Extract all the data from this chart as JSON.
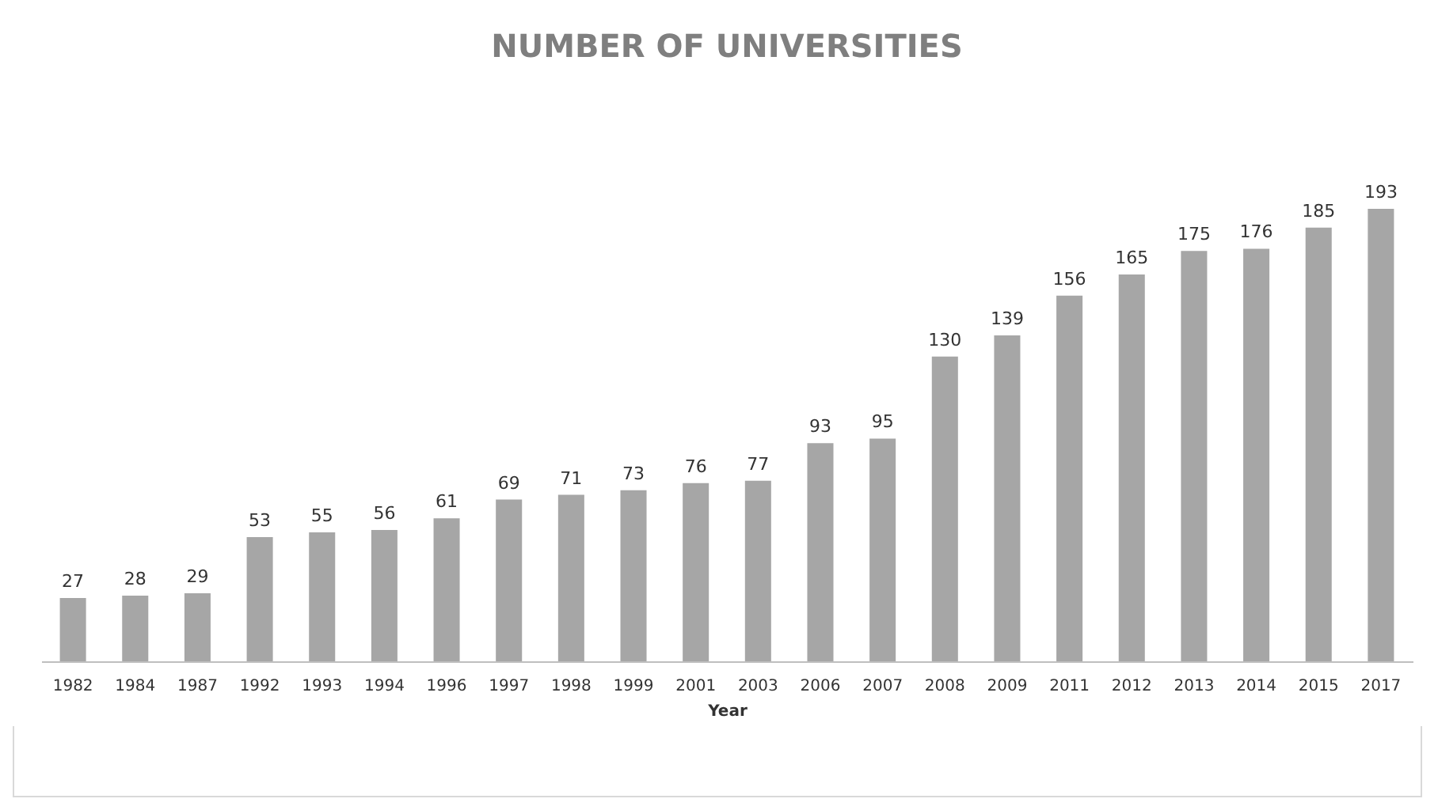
{
  "chart_data": {
    "type": "bar",
    "title": "NUMBER OF UNIVERSITIES",
    "xlabel": "Year",
    "categories": [
      "1982",
      "1984",
      "1987",
      "1992",
      "1993",
      "1994",
      "1996",
      "1997",
      "1998",
      "1999",
      "2001",
      "2003",
      "2006",
      "2007",
      "2008",
      "2009",
      "2011",
      "2012",
      "2013",
      "2014",
      "2015",
      "2017"
    ],
    "values": [
      27,
      28,
      29,
      53,
      55,
      56,
      61,
      69,
      71,
      73,
      76,
      77,
      93,
      95,
      130,
      139,
      156,
      165,
      175,
      176,
      185,
      193
    ],
    "color": "#a6a6a6",
    "data_labels": true,
    "grid": false
  }
}
